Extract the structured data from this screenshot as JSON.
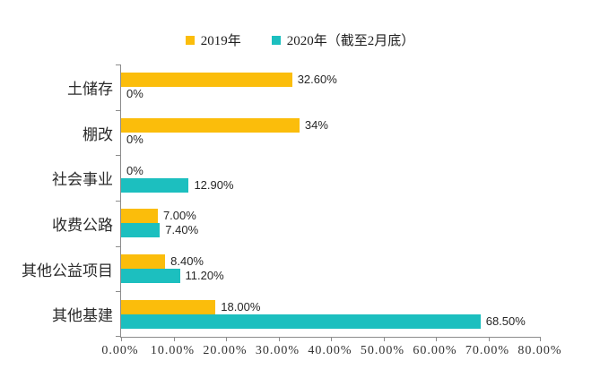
{
  "chart_data": {
    "type": "bar",
    "orientation": "horizontal",
    "categories": [
      "土储存",
      "棚改",
      "社会事业",
      "收费公路",
      "其他公益项目",
      "其他基建"
    ],
    "series": [
      {
        "name": "2019年",
        "color": "#FBBD0B",
        "values": [
          32.6,
          34,
          0,
          7.0,
          8.4,
          18.0
        ],
        "data_labels": [
          "32.60%",
          "34%",
          "0%",
          "7.00%",
          "8.40%",
          "18.00%"
        ]
      },
      {
        "name": "2020年（截至2月底）",
        "color": "#1CBFBF",
        "values": [
          0,
          0,
          12.9,
          7.4,
          11.2,
          68.5
        ],
        "data_labels": [
          "0%",
          "0%",
          "12.90%",
          "7.40%",
          "11.20%",
          "68.50%"
        ]
      }
    ],
    "xlim": [
      0,
      80
    ],
    "x_tick_labels": [
      "0.00%",
      "10.00%",
      "20.00%",
      "30.00%",
      "40.00%",
      "50.00%",
      "60.00%",
      "70.00%",
      "80.00%"
    ],
    "grid": false,
    "legend_position": "top-center",
    "title": "",
    "xlabel": "",
    "ylabel": ""
  },
  "colors": {
    "series_2019": "#FBBD0B",
    "series_2020": "#1CBFBF",
    "axis_line": "#8C8C8C",
    "tick_label": "#333333",
    "value_label": "#262626",
    "category_label": "#2B2B2B",
    "background": "#FFFFFF"
  }
}
